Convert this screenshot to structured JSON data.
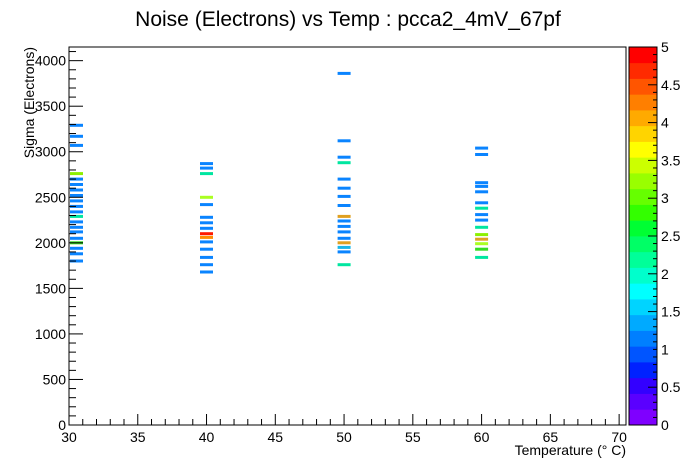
{
  "chart_data": {
    "type": "heatmap",
    "title": "Noise (Electrons) vs Temp : pcca2_4mV_67pf",
    "xlabel": "Temperature (° C)",
    "ylabel": "Sigma (Electrons)",
    "xlim": [
      30,
      70.5
    ],
    "ylim": [
      0,
      4150
    ],
    "x_ticks": [
      "30",
      "35",
      "40",
      "45",
      "50",
      "55",
      "60",
      "65",
      "70"
    ],
    "y_ticks": [
      "0",
      "500",
      "1000",
      "1500",
      "2000",
      "2500",
      "3000",
      "3500",
      "4000"
    ],
    "z_ticks": [
      "0",
      "0.5",
      "1",
      "1.5",
      "2",
      "2.5",
      "3",
      "3.5",
      "4",
      "4.5",
      "5"
    ],
    "zlim": [
      0,
      5
    ],
    "bin_height": 33,
    "bins": [
      {
        "x": 30,
        "y": 1800,
        "z": 1
      },
      {
        "x": 30,
        "y": 1880,
        "z": 1
      },
      {
        "x": 30,
        "y": 1940,
        "z": 1
      },
      {
        "x": 30,
        "y": 2000,
        "z": 2.5
      },
      {
        "x": 30,
        "y": 2050,
        "z": 1
      },
      {
        "x": 30,
        "y": 2120,
        "z": 1
      },
      {
        "x": 30,
        "y": 2170,
        "z": 1
      },
      {
        "x": 30,
        "y": 2230,
        "z": 1
      },
      {
        "x": 30,
        "y": 2290,
        "z": 2
      },
      {
        "x": 30,
        "y": 2340,
        "z": 1
      },
      {
        "x": 30,
        "y": 2400,
        "z": 1
      },
      {
        "x": 30,
        "y": 2460,
        "z": 1
      },
      {
        "x": 30,
        "y": 2520,
        "z": 1
      },
      {
        "x": 30,
        "y": 2580,
        "z": 1
      },
      {
        "x": 30,
        "y": 2640,
        "z": 1
      },
      {
        "x": 30,
        "y": 2700,
        "z": 1
      },
      {
        "x": 30,
        "y": 2760,
        "z": 3
      },
      {
        "x": 30,
        "y": 3070,
        "z": 1
      },
      {
        "x": 30,
        "y": 3170,
        "z": 1
      },
      {
        "x": 30,
        "y": 3290,
        "z": 1
      },
      {
        "x": 40,
        "y": 1680,
        "z": 1
      },
      {
        "x": 40,
        "y": 1760,
        "z": 1
      },
      {
        "x": 40,
        "y": 1840,
        "z": 1
      },
      {
        "x": 40,
        "y": 1930,
        "z": 1
      },
      {
        "x": 40,
        "y": 2010,
        "z": 1
      },
      {
        "x": 40,
        "y": 2060,
        "z": 4.5
      },
      {
        "x": 40,
        "y": 2100,
        "z": 5
      },
      {
        "x": 40,
        "y": 2160,
        "z": 1
      },
      {
        "x": 40,
        "y": 2220,
        "z": 1
      },
      {
        "x": 40,
        "y": 2280,
        "z": 1
      },
      {
        "x": 40,
        "y": 2420,
        "z": 1
      },
      {
        "x": 40,
        "y": 2500,
        "z": 3.5
      },
      {
        "x": 40,
        "y": 2760,
        "z": 2
      },
      {
        "x": 40,
        "y": 2820,
        "z": 1
      },
      {
        "x": 40,
        "y": 2870,
        "z": 1
      },
      {
        "x": 50,
        "y": 1760,
        "z": 2
      },
      {
        "x": 50,
        "y": 1900,
        "z": 1
      },
      {
        "x": 50,
        "y": 1950,
        "z": 1.5
      },
      {
        "x": 50,
        "y": 2000,
        "z": 4
      },
      {
        "x": 50,
        "y": 2050,
        "z": 1
      },
      {
        "x": 50,
        "y": 2120,
        "z": 1
      },
      {
        "x": 50,
        "y": 2180,
        "z": 1
      },
      {
        "x": 50,
        "y": 2240,
        "z": 1
      },
      {
        "x": 50,
        "y": 2290,
        "z": 4
      },
      {
        "x": 50,
        "y": 2410,
        "z": 1
      },
      {
        "x": 50,
        "y": 2510,
        "z": 1
      },
      {
        "x": 50,
        "y": 2600,
        "z": 1
      },
      {
        "x": 50,
        "y": 2700,
        "z": 1
      },
      {
        "x": 50,
        "y": 2880,
        "z": 2
      },
      {
        "x": 50,
        "y": 2940,
        "z": 1
      },
      {
        "x": 50,
        "y": 3120,
        "z": 1
      },
      {
        "x": 50,
        "y": 3860,
        "z": 1
      },
      {
        "x": 60,
        "y": 1840,
        "z": 2
      },
      {
        "x": 60,
        "y": 1930,
        "z": 2.5
      },
      {
        "x": 60,
        "y": 1990,
        "z": 3.5
      },
      {
        "x": 60,
        "y": 2040,
        "z": 4
      },
      {
        "x": 60,
        "y": 2090,
        "z": 3
      },
      {
        "x": 60,
        "y": 2170,
        "z": 2
      },
      {
        "x": 60,
        "y": 2250,
        "z": 1
      },
      {
        "x": 60,
        "y": 2310,
        "z": 1
      },
      {
        "x": 60,
        "y": 2380,
        "z": 2
      },
      {
        "x": 60,
        "y": 2440,
        "z": 1
      },
      {
        "x": 60,
        "y": 2560,
        "z": 1
      },
      {
        "x": 60,
        "y": 2620,
        "z": 1
      },
      {
        "x": 60,
        "y": 2660,
        "z": 1
      },
      {
        "x": 60,
        "y": 2970,
        "z": 1
      },
      {
        "x": 60,
        "y": 3040,
        "z": 1
      }
    ]
  }
}
